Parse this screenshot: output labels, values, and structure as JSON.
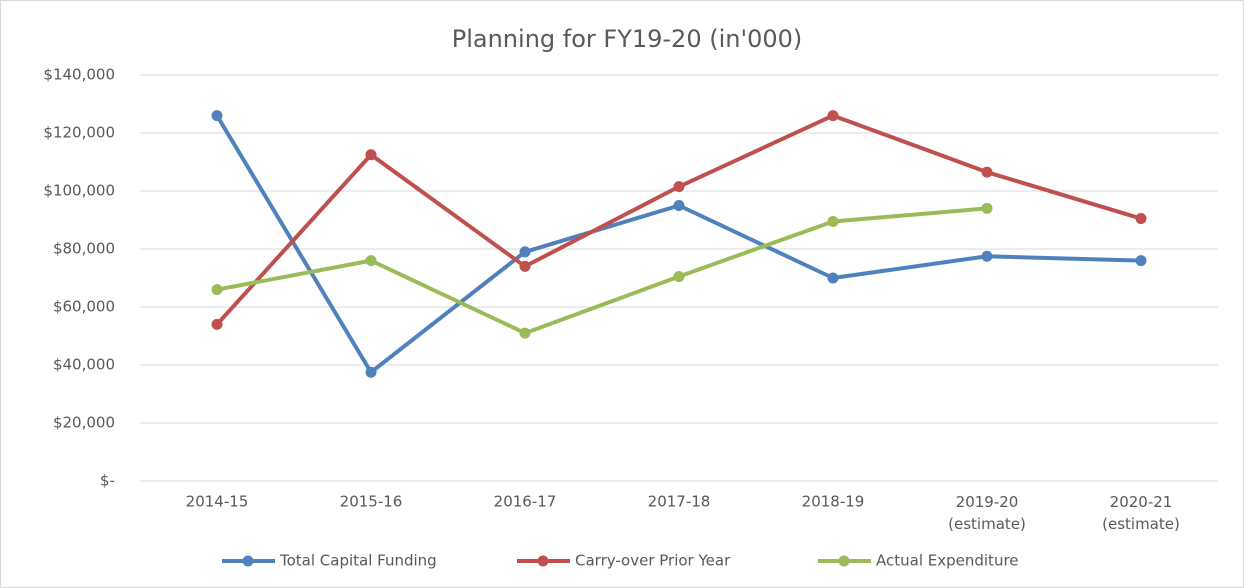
{
  "chart_data": {
    "type": "line",
    "title": "Planning for FY19-20 (in'000)",
    "categories": [
      "2014-15",
      "2015-16",
      "2016-17",
      "2017-18",
      "2018-19",
      "2019-20 (estimate)",
      "2020-21 (estimate)"
    ],
    "series": [
      {
        "name": "Total Capital Funding",
        "color": "#4f81bd",
        "values": [
          126000,
          37500,
          79000,
          95000,
          70000,
          77500,
          76000
        ]
      },
      {
        "name": "Carry-over Prior Year",
        "color": "#c0504d",
        "values": [
          54000,
          112500,
          74000,
          101500,
          126000,
          106500,
          90500
        ]
      },
      {
        "name": "Actual Expenditure",
        "color": "#9bbb59",
        "values": [
          66000,
          76000,
          51000,
          70500,
          89500,
          94000,
          null
        ]
      }
    ],
    "ylim": [
      0,
      140000
    ],
    "yticks": [
      {
        "value": 0,
        "label": "$-"
      },
      {
        "value": 20000,
        "label": "$20,000"
      },
      {
        "value": 40000,
        "label": "$40,000"
      },
      {
        "value": 60000,
        "label": "$60,000"
      },
      {
        "value": 80000,
        "label": "$80,000"
      },
      {
        "value": 100000,
        "label": "$100,000"
      },
      {
        "value": 120000,
        "label": "$120,000"
      },
      {
        "value": 140000,
        "label": "$140,000"
      }
    ],
    "grid": true,
    "legend": "bottom"
  }
}
